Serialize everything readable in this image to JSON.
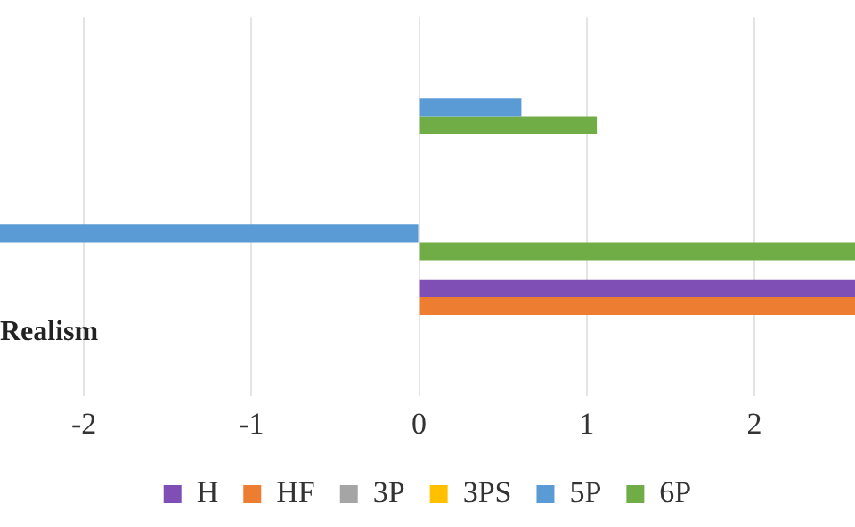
{
  "chart_data": {
    "type": "bar",
    "orientation": "horizontal",
    "categories": [
      null,
      null,
      "Realism"
    ],
    "series": [
      {
        "name": "H",
        "color": "#7f4fb5",
        "values": [
          null,
          null,
          2.6
        ]
      },
      {
        "name": "HF",
        "color": "#ed7d31",
        "values": [
          null,
          null,
          2.6
        ]
      },
      {
        "name": "3P",
        "color": "#a5a5a5",
        "values": [
          null,
          null,
          null
        ]
      },
      {
        "name": "3PS",
        "color": "#ffc000",
        "values": [
          null,
          null,
          null
        ]
      },
      {
        "name": "5P",
        "color": "#5b9bd5",
        "values": [
          0.61,
          -2.5,
          null
        ]
      },
      {
        "name": "6P",
        "color": "#70ad47",
        "values": [
          1.06,
          2.6,
          null
        ]
      }
    ],
    "xlim": [
      -2.5,
      2.6
    ],
    "xticks": [
      -2,
      -1,
      0,
      1,
      2
    ],
    "grid": "x",
    "legend": "bottom"
  }
}
